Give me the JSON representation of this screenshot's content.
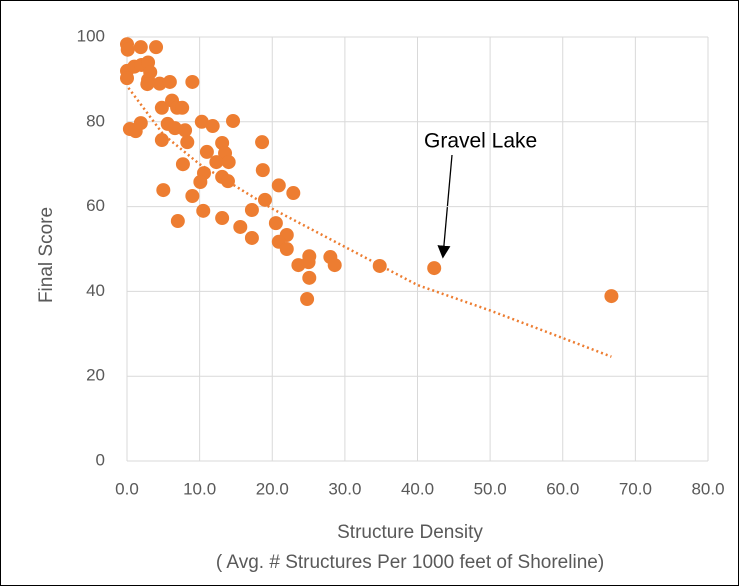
{
  "chart_data": {
    "type": "scatter",
    "ylabel": "Final Score",
    "xlabel": "Structure Density",
    "xlabel_note": "( Avg. # Structures Per 1000 feet of Shoreline)",
    "annotation": "Gravel Lake",
    "grid": true,
    "xlim": [
      0,
      80
    ],
    "ylim": [
      0,
      100
    ],
    "xticks": [
      {
        "value": 0,
        "label": "0.0"
      },
      {
        "value": 10,
        "label": "10.0"
      },
      {
        "value": 20,
        "label": "20.0"
      },
      {
        "value": 30,
        "label": "30.0"
      },
      {
        "value": 40,
        "label": "40.0"
      },
      {
        "value": 50,
        "label": "50.0"
      },
      {
        "value": 60,
        "label": "60.0"
      },
      {
        "value": 70,
        "label": "70.0"
      },
      {
        "value": 80,
        "label": "80.0"
      }
    ],
    "yticks": [
      0,
      20,
      40,
      60,
      80,
      100
    ],
    "series": [
      {
        "color": "#ed7d31",
        "x": [
          0,
          0.1,
          1.9,
          4,
          0,
          0,
          1,
          2,
          2.9,
          3.2,
          2.9,
          4.5,
          5.9,
          9,
          0.4,
          1.2,
          1.9,
          2.8,
          4.8,
          6.2,
          6.9,
          7.6,
          5.6,
          6.6,
          8,
          4.8,
          8.3,
          10.3,
          11.8,
          14.6,
          11,
          13.1,
          13.5,
          14,
          12.3,
          7.7,
          18.6,
          18.7,
          10.6,
          10.1,
          13.1,
          13.9,
          20.9,
          22.9,
          5,
          9,
          19,
          17.2,
          10.5,
          13.1,
          7,
          15.6,
          20.5,
          17.2,
          22,
          20.9,
          22,
          23.6,
          25.1,
          25,
          25.1,
          24.8,
          28,
          28.6,
          34.8,
          42.3,
          66.7
        ],
        "values": [
          98.3,
          97,
          97.6,
          97.6,
          92,
          90.3,
          93,
          93.4,
          94,
          91.7,
          89.9,
          89,
          89.4,
          89.4,
          78.3,
          77.8,
          79.7,
          88.9,
          83.3,
          85,
          83.3,
          83.3,
          79.5,
          78.5,
          78,
          75.7,
          75.2,
          80,
          79,
          80.2,
          72.9,
          75,
          72.6,
          70.5,
          70.5,
          70,
          75.2,
          68.6,
          67.9,
          65.8,
          67,
          66,
          65,
          63.2,
          63.9,
          62.5,
          61.6,
          59.2,
          59,
          57.3,
          56.6,
          55.2,
          56.1,
          52.6,
          53.3,
          51.7,
          50,
          46.2,
          48.3,
          46.9,
          43.2,
          38.2,
          48.1,
          46.2,
          46,
          45.5,
          38.9
        ]
      }
    ],
    "trendline": {
      "color": "#ed7d31",
      "x": [
        0.2,
        5,
        10,
        20,
        30,
        40,
        50,
        60,
        66.7
      ],
      "values": [
        88,
        77,
        70,
        59.5,
        50.5,
        41.5,
        35.5,
        29,
        24.6
      ]
    }
  }
}
